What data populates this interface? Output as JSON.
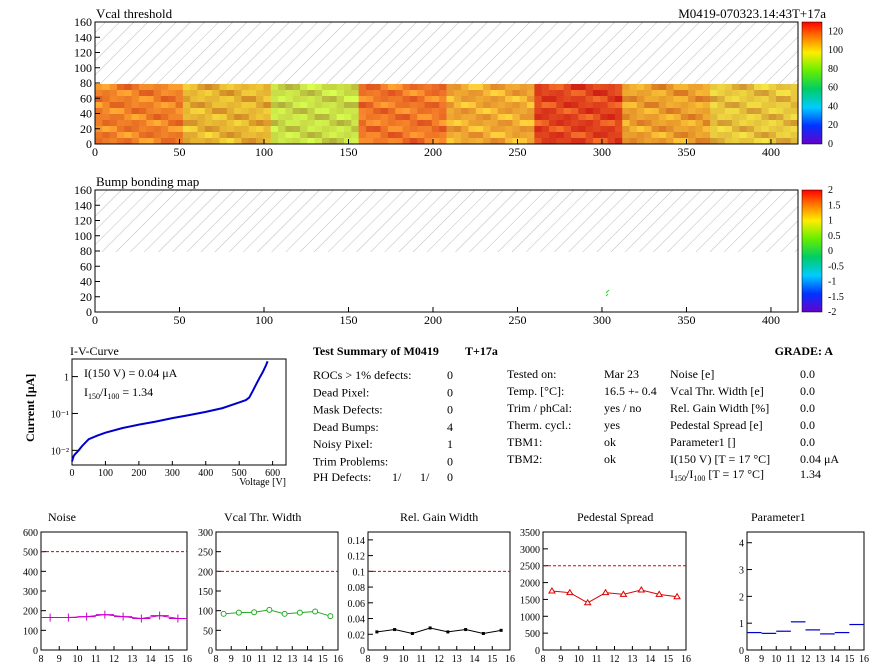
{
  "header": {
    "map1_title": "Vcal threshold",
    "module_id": "M0419-070323.14:43T+17a",
    "map2_title": "Bump bonding map"
  },
  "maps": {
    "x_ticks": [
      "0",
      "50",
      "100",
      "150",
      "200",
      "250",
      "300",
      "350",
      "400"
    ],
    "y_ticks": [
      "0",
      "20",
      "40",
      "60",
      "80",
      "100",
      "120",
      "140",
      "160"
    ],
    "map1_palette_ticks": [
      "0",
      "20",
      "40",
      "60",
      "80",
      "100",
      "120"
    ],
    "map2_palette_ticks": [
      "-2",
      "-1.5",
      "-1",
      "-0.5",
      "0",
      "0.5",
      "1",
      "1.5",
      "2"
    ],
    "xlim": [
      0,
      416
    ],
    "ylim": [
      0,
      160
    ],
    "filled_rows": [
      0,
      80
    ]
  },
  "iv": {
    "title": "I-V-Curve",
    "ylabel": "Current [μA]",
    "xlabel": "Voltage [V]",
    "x_ticks": [
      "0",
      "100",
      "200",
      "300",
      "400",
      "500",
      "600"
    ],
    "y_ticks": [
      "10⁻²",
      "10⁻¹",
      "1"
    ],
    "line1": "I(150 V) = 0.04 μA",
    "line2_main": "I",
    "line2_sub1": "150",
    "line2_mid": "/I",
    "line2_sub2": "100",
    "line2_val": " =  1.34"
  },
  "summary": {
    "title": "Test Summary of M0419",
    "tag": "T+17a",
    "grade": "GRADE:  A",
    "left": [
      {
        "label": "ROCs > 1% defects:",
        "value": "0"
      },
      {
        "label": "Dead Pixel:",
        "value": "0"
      },
      {
        "label": "Mask Defects:",
        "value": "0"
      },
      {
        "label": "Dead Bumps:",
        "value": "4"
      },
      {
        "label": "Noisy Pixel:",
        "value": "1"
      },
      {
        "label": "Trim Problems:",
        "value": "0"
      }
    ],
    "ph_label": "PH Defects:",
    "ph_v1": "1/",
    "ph_v2": "1/",
    "ph_v3": "0",
    "middle": [
      {
        "label": "Tested on:",
        "value": "Mar 23"
      },
      {
        "label": "Temp. [°C]:",
        "value": "16.5 +- 0.4"
      },
      {
        "label": "Trim / phCal:",
        "value": "yes / no"
      },
      {
        "label": "Therm. cycl.:",
        "value": "yes"
      },
      {
        "label": "TBM1:",
        "value": "ok"
      },
      {
        "label": "TBM2:",
        "value": "ok"
      }
    ],
    "right": [
      {
        "label": "Noise [e]",
        "value": "0.0"
      },
      {
        "label": "Vcal Thr. Width [e]",
        "value": "0.0"
      },
      {
        "label": "Rel. Gain Width [%]",
        "value": "0.0"
      },
      {
        "label": "Pedestal Spread [e]",
        "value": "0.0"
      },
      {
        "label": "Parameter1 []",
        "value": "0.0"
      },
      {
        "label": "I(150 V) [T = 17 °C]",
        "value": "0.04 μA"
      }
    ],
    "ratio_label_main": "I",
    "ratio_sub1": "150",
    "ratio_mid": "/I",
    "ratio_sub2": "100",
    "ratio_tail": "  [T = 17 °C]",
    "ratio_value": "1.34"
  },
  "colors": {
    "noise": "#cc00cc",
    "vcal": "#22aa22",
    "gain": "#000000",
    "pedestal": "#dd0000",
    "param": "#0000cc",
    "iv": "#0000cc",
    "limit": "#dd0000"
  },
  "chart_data": [
    {
      "type": "scatter",
      "title": "Noise",
      "x": [
        8.5,
        9.5,
        10.5,
        11.5,
        12.5,
        13.5,
        14.5,
        15.5
      ],
      "values": [
        165,
        165,
        170,
        180,
        170,
        160,
        175,
        160
      ],
      "ylim": [
        0,
        600
      ],
      "y_ticks": [
        0,
        100,
        200,
        300,
        400,
        500,
        600
      ],
      "limit": 500,
      "style": "crosses"
    },
    {
      "type": "line",
      "title": "Vcal Thr. Width",
      "x": [
        8.5,
        9.5,
        10.5,
        11.5,
        12.5,
        13.5,
        14.5,
        15.5
      ],
      "values": [
        92,
        95,
        96,
        102,
        92,
        95,
        98,
        86
      ],
      "ylim": [
        0,
        300
      ],
      "y_ticks": [
        0,
        50,
        100,
        150,
        200,
        250,
        300
      ],
      "limit": 200,
      "style": "circles"
    },
    {
      "type": "line",
      "title": "Rel. Gain Width",
      "x": [
        8.5,
        9.5,
        10.5,
        11.5,
        12.5,
        13.5,
        14.5,
        15.5
      ],
      "values": [
        0.023,
        0.026,
        0.021,
        0.028,
        0.023,
        0.026,
        0.021,
        0.025
      ],
      "ylim": [
        0,
        0.15
      ],
      "y_ticks": [
        0,
        0.02,
        0.04,
        0.06,
        0.08,
        0.1,
        0.12,
        0.14
      ],
      "limit": 0.1,
      "style": "squares"
    },
    {
      "type": "line",
      "title": "Pedestal Spread",
      "x": [
        8.5,
        9.5,
        10.5,
        11.5,
        12.5,
        13.5,
        14.5,
        15.5
      ],
      "values": [
        1750,
        1700,
        1400,
        1700,
        1650,
        1780,
        1650,
        1580
      ],
      "ylim": [
        0,
        3500
      ],
      "y_ticks": [
        0,
        500,
        1000,
        1500,
        2000,
        2500,
        3000,
        3500
      ],
      "limit": 2500,
      "style": "triangles"
    },
    {
      "type": "scatter",
      "title": "Parameter1",
      "x": [
        8.5,
        9.5,
        10.5,
        11.5,
        12.5,
        13.5,
        14.5,
        15.5
      ],
      "values": [
        0.65,
        0.62,
        0.7,
        1.05,
        0.75,
        0.6,
        0.65,
        0.95
      ],
      "ylim": [
        0,
        4.4
      ],
      "y_ticks": [
        0,
        1,
        2,
        3,
        4
      ],
      "style": "hbars"
    },
    {
      "type": "line",
      "title": "I-V-Curve",
      "x": [
        0,
        5,
        10,
        20,
        30,
        50,
        75,
        100,
        150,
        200,
        250,
        300,
        350,
        400,
        450,
        500,
        520,
        530,
        540,
        550,
        560,
        570,
        580,
        585
      ],
      "values": [
        0.005,
        0.007,
        0.008,
        0.01,
        0.013,
        0.02,
        0.025,
        0.03,
        0.04,
        0.05,
        0.06,
        0.075,
        0.09,
        0.11,
        0.14,
        0.2,
        0.23,
        0.27,
        0.4,
        0.6,
        0.9,
        1.3,
        2.0,
        2.6
      ],
      "xlim": [
        0,
        640
      ],
      "ylim": [
        0.004,
        3
      ],
      "log_y": true
    }
  ]
}
